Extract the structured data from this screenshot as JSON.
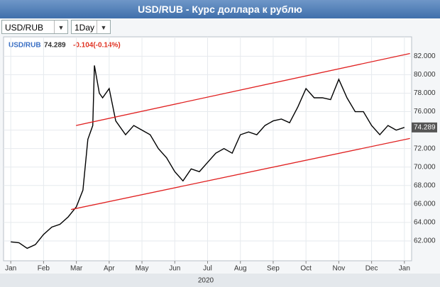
{
  "controls": {
    "symbol": "USD/RUB",
    "interval": "1Day"
  },
  "chart_data": {
    "type": "line",
    "title": "USD/RUB - Курс доллара к рублю",
    "symbol": "USD/RUB",
    "last": 74.289,
    "change": "-0.104(-0.14%)",
    "x_label": "2020",
    "color": "#000000",
    "x": [
      0,
      0.25,
      0.5,
      0.75,
      1.0,
      1.25,
      1.5,
      1.75,
      2.0,
      2.2,
      2.35,
      2.5,
      2.55,
      2.7,
      2.8,
      3.0,
      3.2,
      3.5,
      3.75,
      4.0,
      4.25,
      4.5,
      4.75,
      5.0,
      5.25,
      5.5,
      5.75,
      6.0,
      6.25,
      6.5,
      6.75,
      7.0,
      7.25,
      7.5,
      7.75,
      8.0,
      8.25,
      8.5,
      8.75,
      9.0,
      9.25,
      9.5,
      9.75,
      10.0,
      10.25,
      10.5,
      10.75,
      11.0,
      11.25,
      11.5,
      11.75,
      12.0
    ],
    "values": [
      61.9,
      61.8,
      61.2,
      61.6,
      62.7,
      63.5,
      63.8,
      64.6,
      65.7,
      67.5,
      73,
      74.5,
      81,
      78,
      77.5,
      78.5,
      75,
      73.5,
      74.5,
      74,
      73.5,
      72,
      71,
      69.5,
      68.5,
      69.8,
      69.5,
      70.5,
      71.5,
      72,
      71.5,
      73.5,
      73.8,
      73.5,
      74.5,
      75,
      75.2,
      74.8,
      76.5,
      78.5,
      77.5,
      77.5,
      77.3,
      79.5,
      77.5,
      76,
      76,
      74.5,
      73.5,
      74.5,
      74,
      74.289
    ],
    "trendlines": [
      {
        "color": "#e02020",
        "x": [
          1.99,
          12.17
        ],
        "values": [
          74.5,
          82.3
        ]
      },
      {
        "color": "#e02020",
        "x": [
          1.84,
          12.17
        ],
        "values": [
          65.4,
          73.1
        ]
      }
    ],
    "xlim": [
      -0.22,
      12.22
    ],
    "xticks": [
      {
        "value": 0,
        "label": "Jan"
      },
      {
        "value": 1,
        "label": "Feb"
      },
      {
        "value": 2,
        "label": "Mar"
      },
      {
        "value": 3,
        "label": "Apr"
      },
      {
        "value": 4,
        "label": "May"
      },
      {
        "value": 5,
        "label": "Jun"
      },
      {
        "value": 6,
        "label": "Jul"
      },
      {
        "value": 7,
        "label": "Aug"
      },
      {
        "value": 8,
        "label": "Sep"
      },
      {
        "value": 9,
        "label": "Oct"
      },
      {
        "value": 10,
        "label": "Nov"
      },
      {
        "value": 11,
        "label": "Dec"
      },
      {
        "value": 12,
        "label": "Jan"
      }
    ],
    "ylim": [
      59.85,
      84.1
    ],
    "yticks": [
      {
        "value": 62,
        "label": "62.000"
      },
      {
        "value": 64,
        "label": "64.000"
      },
      {
        "value": 66,
        "label": "66.000"
      },
      {
        "value": 68,
        "label": "68.000"
      },
      {
        "value": 70,
        "label": "70.000"
      },
      {
        "value": 72,
        "label": "72.000"
      },
      {
        "value": 74,
        "label": "74.000"
      },
      {
        "value": 76,
        "label": "76.000"
      },
      {
        "value": 78,
        "label": "78.000"
      },
      {
        "value": 80,
        "label": "80.000"
      },
      {
        "value": 82,
        "label": "82.000"
      }
    ],
    "grid": true
  }
}
